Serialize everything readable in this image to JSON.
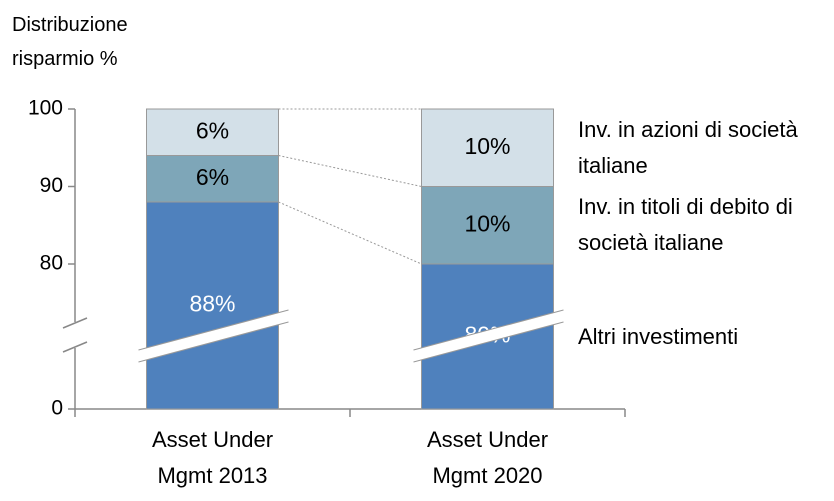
{
  "chart_data": {
    "type": "bar",
    "stacked": true,
    "axis_break": true,
    "ylabel": "Distribuzione risparmio %",
    "categories": [
      "Asset Under Mgmt 2013",
      "Asset Under Mgmt 2020"
    ],
    "series": [
      {
        "name": "Altri investimenti",
        "color": "#4f81bd",
        "label_color": "#ffffff",
        "values": [
          88,
          80
        ],
        "value_labels": [
          "88%",
          "80%"
        ]
      },
      {
        "name": "Inv. in titoli di debito di società italiane",
        "color": "#7ea6b8",
        "label_color": "#000000",
        "values": [
          6,
          10
        ],
        "value_labels": [
          "6%",
          "10%"
        ]
      },
      {
        "name": "Inv. in azioni di società italiane",
        "color": "#d3e0e8",
        "label_color": "#000000",
        "values": [
          6,
          10
        ],
        "value_labels": [
          "6%",
          "10%"
        ]
      }
    ],
    "ylim": [
      0,
      100
    ],
    "yticks": [
      0,
      80,
      90,
      100
    ]
  }
}
